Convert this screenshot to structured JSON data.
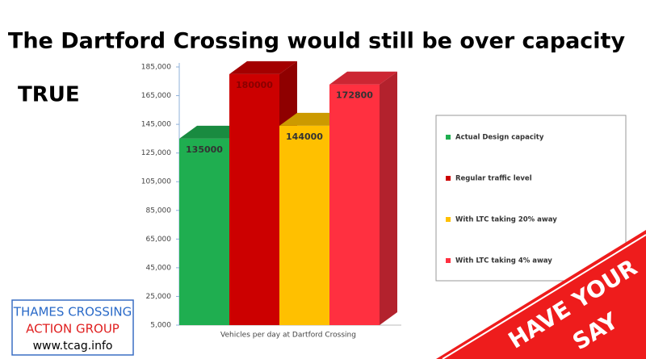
{
  "chart_data": {
    "type": "bar3d",
    "title": "The Dartford Crossing would still be over capacity",
    "x_label": "Vehicles per day at Dartford Crossing",
    "categories": [
      "Actual Design capacity",
      "Regular traffic level",
      "With LTC taking 20% away",
      "With LTC taking 4% away"
    ],
    "values": [
      135000,
      180000,
      144000,
      172800
    ],
    "colors": [
      "#1fae50",
      "#cc0000",
      "#ffc000",
      "#ff3040"
    ],
    "ylim": [
      5000,
      185000
    ],
    "yticks": [
      {
        "value": 5000,
        "label": "5,000"
      },
      {
        "value": 25000,
        "label": "25,000"
      },
      {
        "value": 45000,
        "label": "45,000"
      },
      {
        "value": 65000,
        "label": "65,000"
      },
      {
        "value": 85000,
        "label": "85,000"
      },
      {
        "value": 105000,
        "label": "105,000"
      },
      {
        "value": 125000,
        "label": "125,000"
      },
      {
        "value": 145000,
        "label": "145,000"
      },
      {
        "value": 165000,
        "label": "165,000"
      },
      {
        "value": 185000,
        "label": "185,000"
      }
    ],
    "legend": "right"
  },
  "verdict": "TRUE",
  "logo": {
    "line1": "THAMES CROSSING",
    "line2": "ACTION GROUP",
    "url": "www.tcag.info"
  },
  "banner": [
    "HAVE YOUR",
    "SAY"
  ]
}
